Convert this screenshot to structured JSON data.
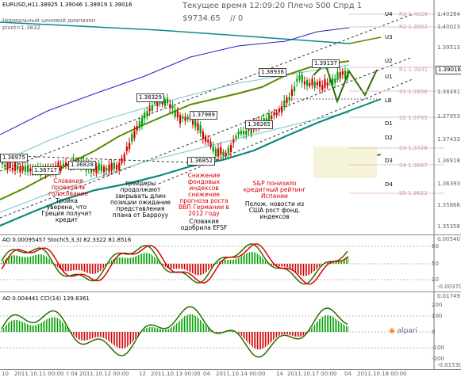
{
  "header": {
    "symbol_tf": "EURUSD,H1",
    "ohlc": "1.38925 1.39046 1.38919 1.39016",
    "server_time": "Текущее время 12:09:20 Плечо 500 Спрд 1",
    "balance": "$9734.65",
    "positions": "// 0",
    "indicator_name": "Нормальный ценовой диапазон",
    "pivot": "pivot=1.3832"
  },
  "price_axis": {
    "ticks": [
      "1.40284",
      "1.40023",
      "1.39513",
      "1.39016",
      "1.38491",
      "1.37953",
      "1.37433",
      "1.36918",
      "1.36393",
      "1.35866",
      "1.35358"
    ],
    "current": "1.39016",
    "level_values": [
      "R3 1.4028",
      "R2 1.3952",
      "R1 1.3931",
      "S1 1.3856",
      "S2 1.3795",
      "S3 1.3728",
      "S4 1.3687",
      "S5 1.3622"
    ]
  },
  "pivot_levels": [
    "U4",
    "U3",
    "U2",
    "U1",
    "LB",
    "D1",
    "D2",
    "D3",
    "D4"
  ],
  "price_labels": [
    "1.36975",
    "1.36717",
    "1.36828",
    "1.38329",
    "1.37989",
    "1.38265",
    "1.36852",
    "1.38936",
    "1.39137"
  ],
  "annotations": [
    {
      "color": "red",
      "text": "Словакия провалила голосование"
    },
    {
      "color": "black",
      "text": "Тройка уверена, что Греция получит кредит"
    },
    {
      "color": "black",
      "text": "трейдеры продолжают закрывать длин позиции ожидание представления плана от Барроуу"
    },
    {
      "color": "red",
      "text": "Снижение фондовых индексов снижение прогноза роста ВВП Германии в 2012 году"
    },
    {
      "color": "black",
      "text": "Словакия одобрила EFSF"
    },
    {
      "color": "red",
      "text": "S&P понизило кредитный рейтинг Испании"
    },
    {
      "color": "black",
      "text": "Полож. новости из США рост фонд. индексов"
    }
  ],
  "stoch_panel": {
    "label": "AO 0.00095457  Stoch(5,3,3) 82.3322 81.8516",
    "ticks": [
      "0.00540",
      "80",
      "50",
      "20",
      "-0.00370"
    ]
  },
  "cci_panel": {
    "label": "AO 0.004441  CCI(14) 139.8361",
    "ticks": [
      "0.01749",
      "200",
      "100",
      "0",
      "-100",
      "-200",
      "-0.01530"
    ]
  },
  "time_axis": [
    "10",
    "2011.10.11 00:00",
    "2011.10.12 00:00",
    "12",
    "2011.10.13 00:00",
    "2011.10.14 00:00",
    "14",
    "2011.10.17 00:00",
    "2011.10.18 00:00"
  ],
  "time_axis_extra": [
    "t 04",
    "04",
    "04",
    "04"
  ],
  "brand": "alpari",
  "colors": {
    "background": "#ffffff",
    "bull_candle": "#00a000",
    "bear_candle": "#d00000",
    "ma_green": "#5a8a00",
    "blue_channel": "#1a1acc",
    "teal_line": "#009a9a",
    "stoch_green": "#2a6e00",
    "stoch_red": "#dd0000"
  }
}
